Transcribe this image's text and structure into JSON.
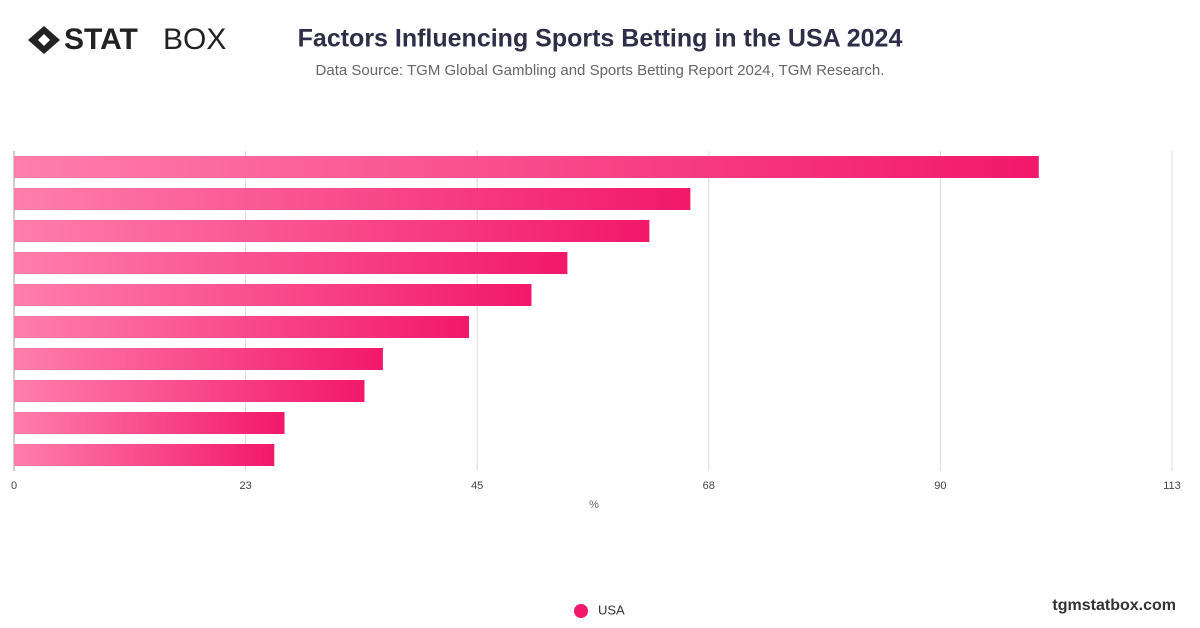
{
  "branding": {
    "logo_bold": "STAT",
    "logo_light": "BOX",
    "website": "tgmstatbox.com"
  },
  "chart_data": {
    "type": "bar",
    "orientation": "horizontal",
    "title": "Factors Influencing Sports Betting in the USA 2024",
    "subtitle": "Data Source: TGM Global Gambling and Sports Betting Report 2024, TGM Research.",
    "x_label": "%",
    "categories": [
      null,
      null,
      null,
      null,
      null,
      null,
      null,
      null,
      null,
      null
    ],
    "series": [
      {
        "name": "USA",
        "color": "#f2186a",
        "values": [
          100,
          66,
          62,
          54,
          50.5,
          44.4,
          36,
          34.2,
          26.4,
          25.4
        ]
      }
    ],
    "xlim": [
      0,
      113
    ],
    "xticks": [
      0,
      {
        "value": 22.6,
        "label": "23"
      },
      {
        "value": 45.2,
        "label": "45"
      },
      {
        "value": 67.8,
        "label": "68"
      },
      {
        "value": 90.4,
        "label": "90"
      },
      113
    ],
    "grid": true,
    "legend": "bottom"
  }
}
